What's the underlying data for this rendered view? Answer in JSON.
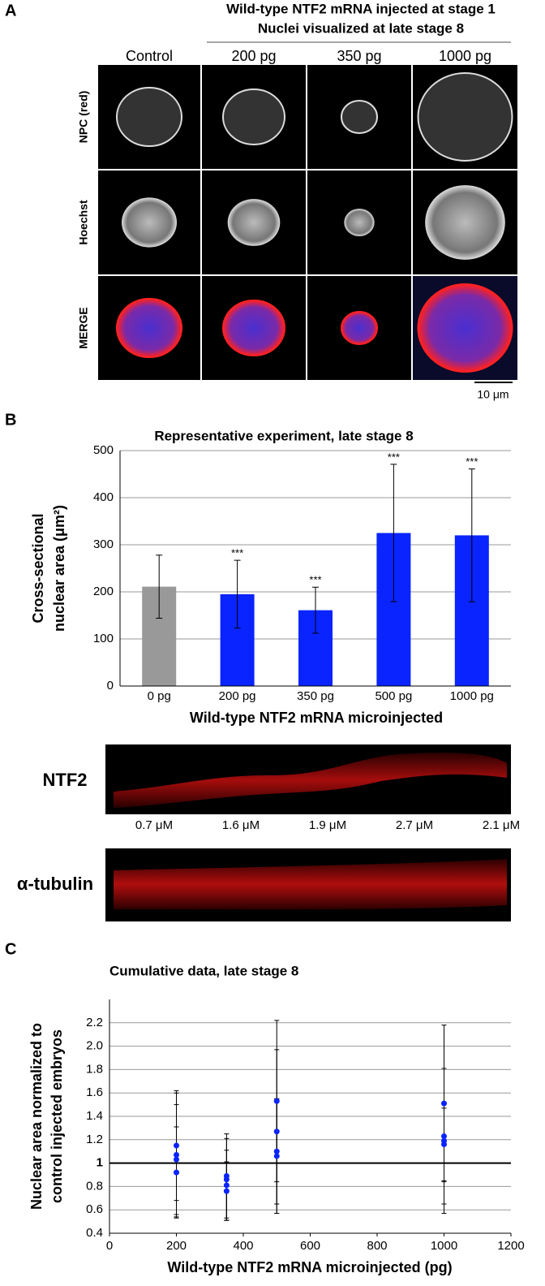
{
  "panel_a": {
    "label": "A",
    "title_lines": [
      "Wild-type NTF2 mRNA injected at stage 1",
      "Nuclei visualized at late stage 8"
    ],
    "columns": [
      "Control",
      "200 pg",
      "350 pg",
      "1000 pg"
    ],
    "rows": [
      "NPC (red)",
      "Hoechst",
      "MERGE"
    ],
    "scale_bar": "10 μm"
  },
  "panel_b": {
    "label": "B"
  },
  "blot": {
    "rows": [
      "NTF2",
      "α-tubulin"
    ],
    "concentrations": [
      "0.7 μM",
      "1.6 μM",
      "1.9 μM",
      "2.7 μM",
      "2.1 μM"
    ]
  },
  "panel_c": {
    "label": "C"
  },
  "chart_data": [
    {
      "type": "bar",
      "title": "Representative experiment, late stage 8",
      "y_label": [
        "Cross-sectional",
        "nuclear area (μm²)"
      ],
      "x_label": "Wild-type NTF2 mRNA microinjected",
      "categories": [
        "0 pg",
        "200 pg",
        "350 pg",
        "500 pg",
        "1000 pg"
      ],
      "values": [
        211,
        195,
        161,
        325,
        320
      ],
      "errors": [
        67,
        72,
        49,
        146,
        141
      ],
      "significance": [
        null,
        "***",
        "***",
        "***",
        "***"
      ],
      "colors": [
        "#999999",
        "#0a24ff",
        "#0a24ff",
        "#0a24ff",
        "#0a24ff"
      ],
      "ylim": [
        0,
        500
      ],
      "yticks": [
        0,
        100,
        200,
        300,
        400,
        500
      ],
      "grid": true
    },
    {
      "type": "scatter",
      "title": "Cumulative data, late stage 8",
      "y_label": [
        "Nuclear area normalized to",
        "control injected embryos"
      ],
      "x_label": "Wild-type NTF2 mRNA microinjected (pg)",
      "x": [
        200,
        200,
        200,
        200,
        350,
        350,
        350,
        350,
        500,
        500,
        500,
        500,
        1000,
        1000,
        1000,
        1000
      ],
      "values": [
        1.15,
        1.07,
        1.03,
        0.92,
        0.89,
        0.86,
        0.81,
        0.76,
        1.53,
        1.27,
        1.1,
        1.06,
        1.51,
        1.23,
        1.19,
        1.16
      ],
      "errors": [
        0.47,
        0.53,
        0.47,
        0.39,
        0.36,
        0.35,
        0.3,
        0.25,
        0.69,
        0.7,
        0.45,
        0.49,
        0.67,
        0.58,
        0.62,
        0.31
      ],
      "color": "#0a24ff",
      "reference_line": 1,
      "xlim": [
        0,
        1200
      ],
      "xticks": [
        0,
        200,
        400,
        600,
        800,
        1000,
        1200
      ],
      "ylim": [
        0.4,
        2.4
      ],
      "yticks": [
        0.4,
        0.6,
        0.8,
        1,
        1.2,
        1.4,
        1.6,
        1.8,
        {
          "value": 2,
          "label": "2.0"
        },
        2.2
      ],
      "grid": true
    }
  ]
}
